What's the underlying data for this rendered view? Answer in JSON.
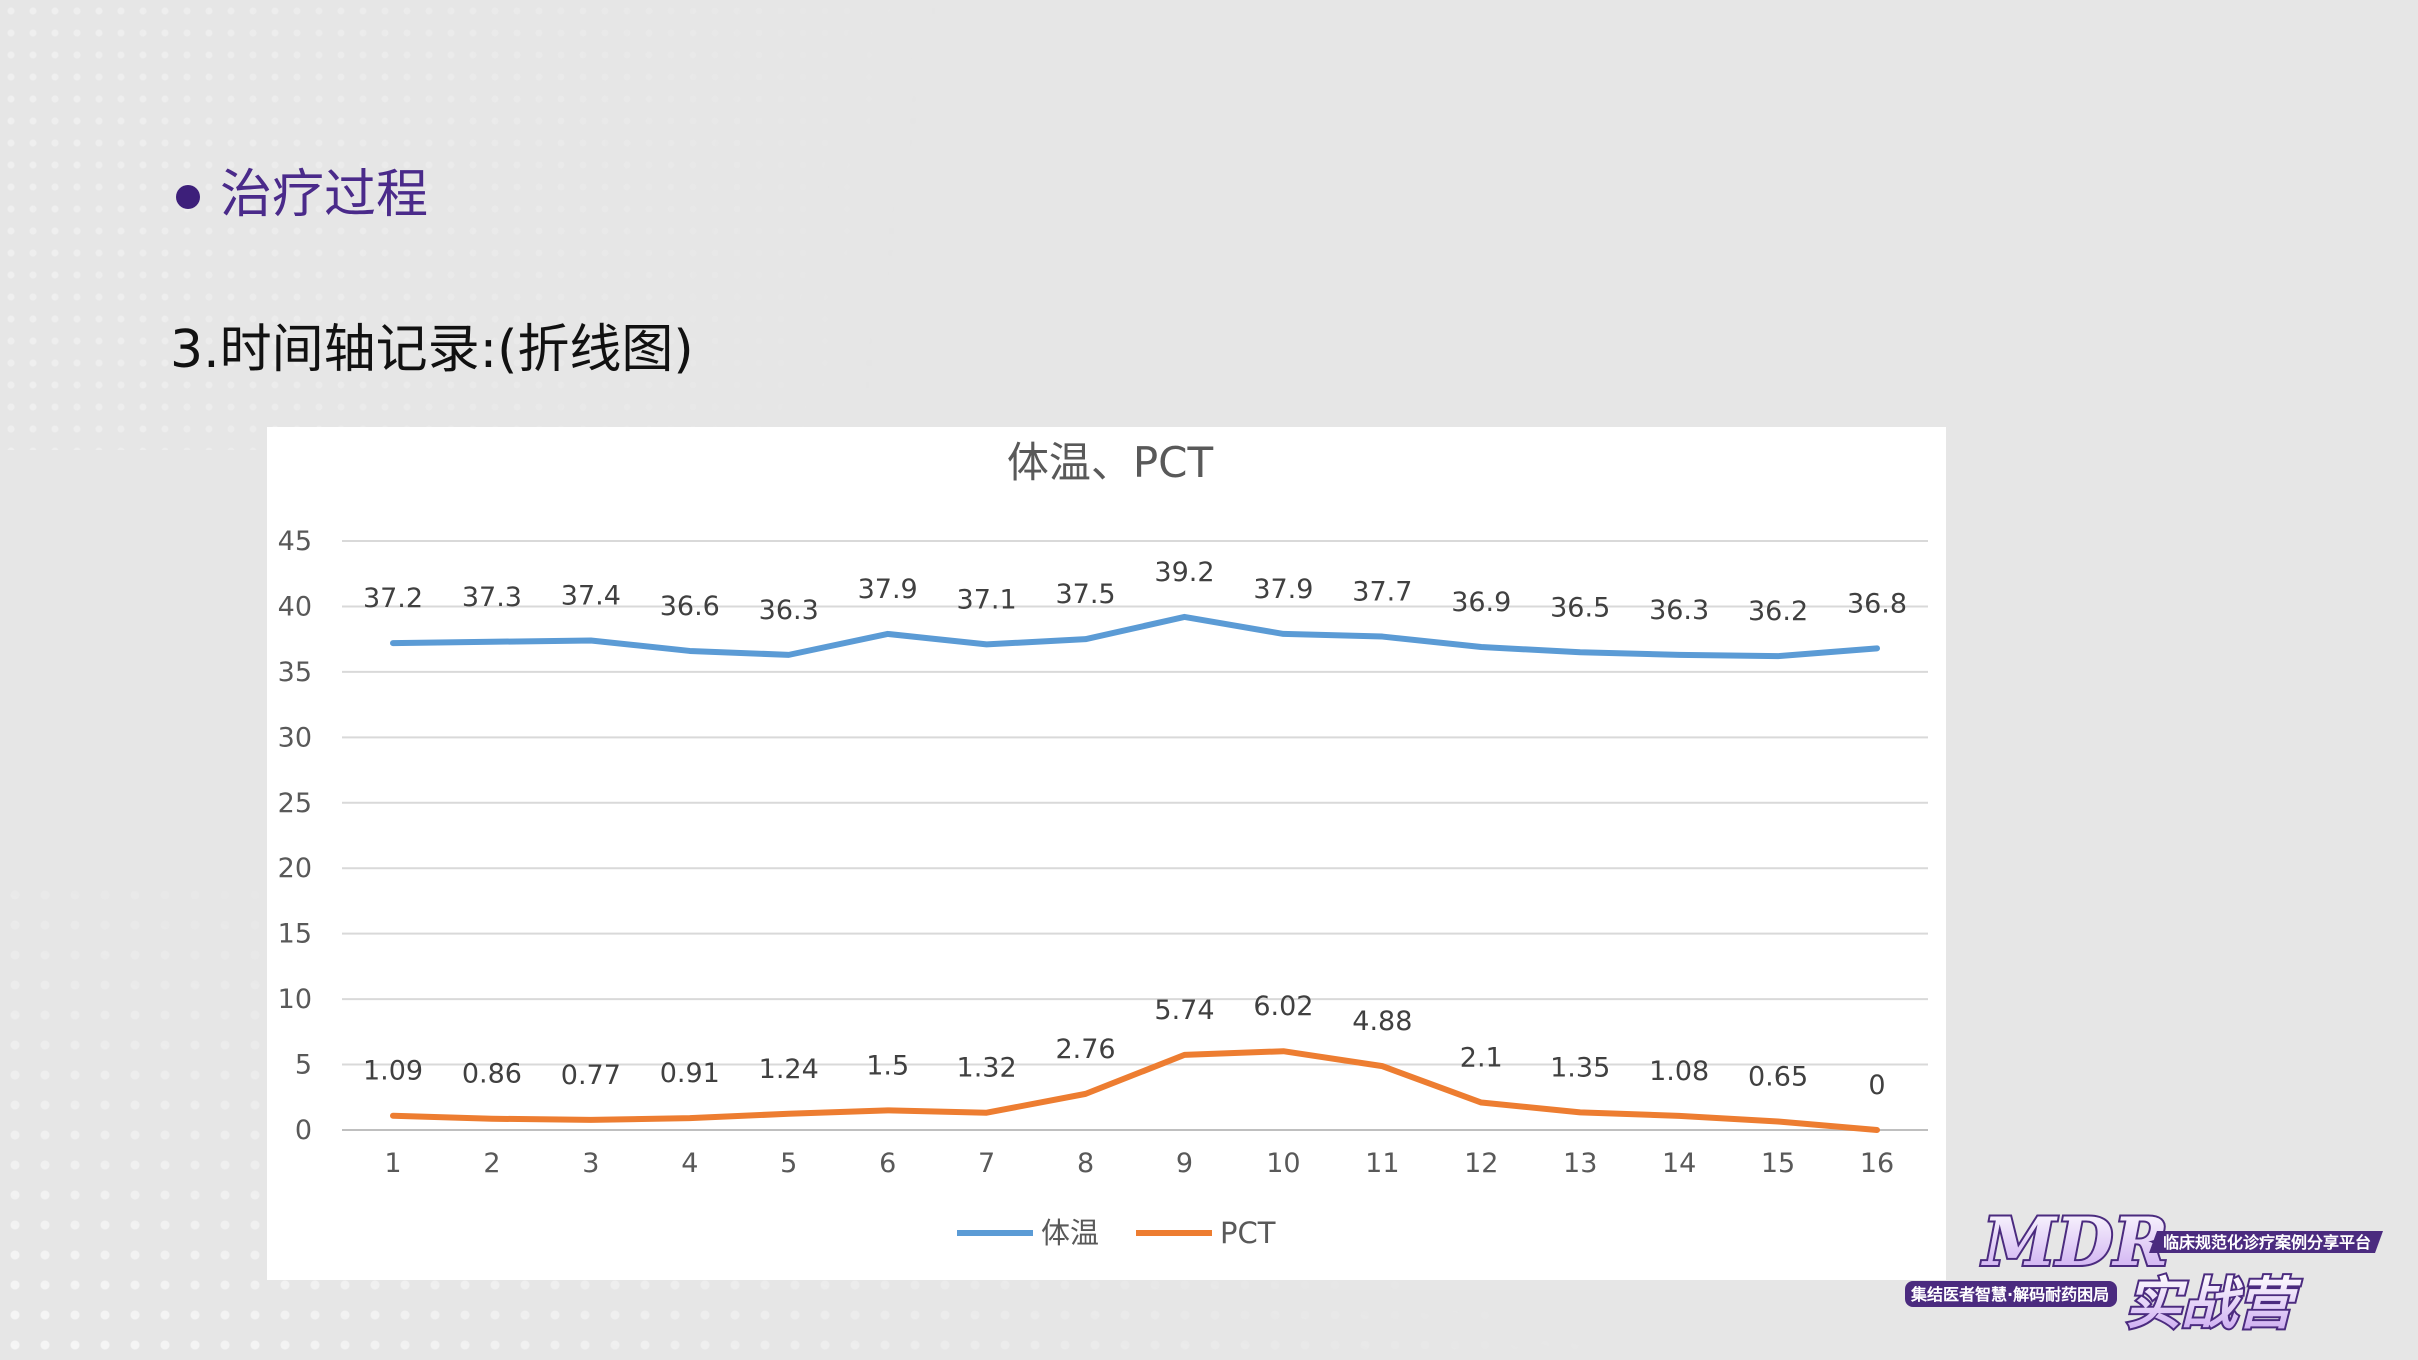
{
  "slide": {
    "heading": "治疗过程",
    "subtitle": "3.时间轴记录:(折线图)"
  },
  "chart_data": {
    "type": "line",
    "title": "体温、PCT",
    "xlabel": "",
    "ylabel": "",
    "ylim": [
      0,
      45
    ],
    "yticks": [
      "0",
      "5",
      "10",
      "15",
      "20",
      "25",
      "30",
      "35",
      "40",
      "45"
    ],
    "categories": [
      "1",
      "2",
      "3",
      "4",
      "5",
      "6",
      "7",
      "8",
      "9",
      "10",
      "11",
      "12",
      "13",
      "14",
      "15",
      "16"
    ],
    "grid": true,
    "legend_position": "bottom",
    "series": [
      {
        "name": "体温",
        "color": "#5b9bd5",
        "values": [
          37.2,
          37.3,
          37.4,
          36.6,
          36.3,
          37.9,
          37.1,
          37.5,
          39.2,
          37.9,
          37.7,
          36.9,
          36.5,
          36.3,
          36.2,
          36.8
        ],
        "labels": [
          "37.2",
          "37.3",
          "37.4",
          "36.6",
          "36.3",
          "37.9",
          "37.1",
          "37.5",
          "39.2",
          "37.9",
          "37.7",
          "36.9",
          "36.5",
          "36.3",
          "36.2",
          "36.8"
        ]
      },
      {
        "name": "PCT",
        "color": "#ed7d31",
        "values": [
          1.09,
          0.86,
          0.77,
          0.91,
          1.24,
          1.5,
          1.32,
          2.76,
          5.74,
          6.02,
          4.88,
          2.1,
          1.35,
          1.08,
          0.65,
          0
        ],
        "labels": [
          "1.09",
          "0.86",
          "0.77",
          "0.91",
          "1.24",
          "1.5",
          "1.32",
          "2.76",
          "5.74",
          "6.02",
          "4.88",
          "2.1",
          "1.35",
          "1.08",
          "0.65",
          "0"
        ]
      }
    ]
  },
  "logo": {
    "main": "MDR",
    "sub": "实战营",
    "tagline": "临床规范化诊疗案例分享平台",
    "slogan": "集结医者智慧·解码耐药困局"
  }
}
